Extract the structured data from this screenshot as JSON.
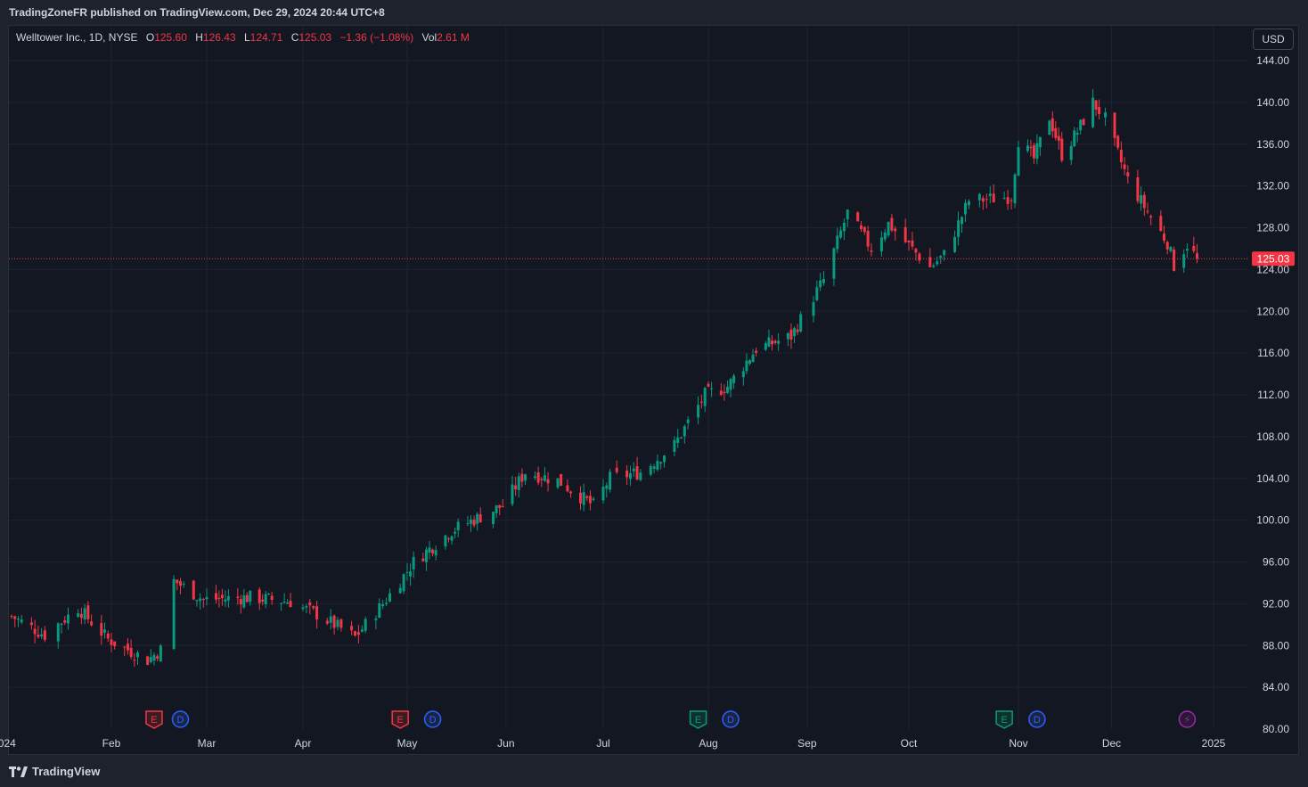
{
  "header": {
    "published": "TradingZoneFR published on TradingView.com, Dec 29, 2024 20:44 UTC+8"
  },
  "legend": {
    "symbol": "Welltower Inc., 1D, NYSE",
    "o_label": "O",
    "o_value": "125.60",
    "h_label": "H",
    "h_value": "126.43",
    "l_label": "L",
    "l_value": "124.71",
    "c_label": "C",
    "c_value": "125.03",
    "change": "−1.36 (−1.08%)",
    "vol_label": "Vol",
    "vol_value": "2.61 M"
  },
  "currency_button": "USD",
  "footer": {
    "brand": "TradingView"
  },
  "colors": {
    "up": "#089981",
    "down": "#f23645",
    "background": "#131722",
    "grid": "#1f2330",
    "text": "#d1d4dc",
    "earnings_down": "#f23645",
    "earnings_up": "#089981",
    "dividend": "#2962ff",
    "split": "#9c27b0"
  },
  "chart_data": {
    "type": "candlestick",
    "ylim": [
      80,
      145
    ],
    "y_ticks": [
      "144.00",
      "140.00",
      "136.00",
      "132.00",
      "128.00",
      "124.00",
      "120.00",
      "116.00",
      "112.00",
      "108.00",
      "104.00",
      "100.00",
      "96.00",
      "92.00",
      "88.00",
      "84.00",
      "80.00"
    ],
    "x_ticks": [
      {
        "label": "024",
        "date": "2024-01-01"
      },
      {
        "label": "Feb",
        "date": "2024-02-01"
      },
      {
        "label": "Mar",
        "date": "2024-03-01"
      },
      {
        "label": "Apr",
        "date": "2024-04-01"
      },
      {
        "label": "May",
        "date": "2024-05-01"
      },
      {
        "label": "Jun",
        "date": "2024-06-01"
      },
      {
        "label": "Jul",
        "date": "2024-07-01"
      },
      {
        "label": "Aug",
        "date": "2024-08-01"
      },
      {
        "label": "Sep",
        "date": "2024-09-01"
      },
      {
        "label": "Oct",
        "date": "2024-10-01"
      },
      {
        "label": "Nov",
        "date": "2024-11-01"
      },
      {
        "label": "Dec",
        "date": "2024-12-01"
      },
      {
        "label": "2025",
        "date": "2025-01-01"
      }
    ],
    "last_price": 125.03,
    "last_price_label": "125.03",
    "close_anchors": [
      [
        "2024-01-02",
        90.8
      ],
      [
        "2024-01-12",
        89.0
      ],
      [
        "2024-01-22",
        91.6
      ],
      [
        "2024-01-31",
        88.6
      ],
      [
        "2024-02-12",
        86.6
      ],
      [
        "2024-02-16",
        87.6
      ],
      [
        "2024-02-20",
        94.2
      ],
      [
        "2024-02-29",
        92.4
      ],
      [
        "2024-03-15",
        92.6
      ],
      [
        "2024-03-28",
        92.2
      ],
      [
        "2024-04-05",
        91.0
      ],
      [
        "2024-04-16",
        88.8
      ],
      [
        "2024-04-24",
        92.0
      ],
      [
        "2024-05-03",
        96.0
      ],
      [
        "2024-05-15",
        99.0
      ],
      [
        "2024-05-31",
        101.4
      ],
      [
        "2024-06-07",
        104.6
      ],
      [
        "2024-06-17",
        103.8
      ],
      [
        "2024-06-28",
        101.4
      ],
      [
        "2024-07-03",
        104.0
      ],
      [
        "2024-07-12",
        104.6
      ],
      [
        "2024-07-22",
        107.2
      ],
      [
        "2024-07-31",
        112.0
      ],
      [
        "2024-08-07",
        112.8
      ],
      [
        "2024-08-16",
        116.4
      ],
      [
        "2024-08-27",
        117.6
      ],
      [
        "2024-09-06",
        123.0
      ],
      [
        "2024-09-13",
        129.4
      ],
      [
        "2024-09-20",
        126.0
      ],
      [
        "2024-09-25",
        128.4
      ],
      [
        "2024-10-07",
        124.2
      ],
      [
        "2024-10-11",
        125.4
      ],
      [
        "2024-10-18",
        130.6
      ],
      [
        "2024-10-25",
        130.8
      ],
      [
        "2024-10-30",
        131.0
      ],
      [
        "2024-11-01",
        136.4
      ],
      [
        "2024-11-06",
        134.6
      ],
      [
        "2024-11-11",
        138.6
      ],
      [
        "2024-11-15",
        135.0
      ],
      [
        "2024-11-20",
        137.2
      ],
      [
        "2024-11-25",
        140.0
      ],
      [
        "2024-11-29",
        138.4
      ],
      [
        "2024-12-06",
        132.6
      ],
      [
        "2024-12-13",
        129.0
      ],
      [
        "2024-12-18",
        126.6
      ],
      [
        "2024-12-20",
        124.4
      ],
      [
        "2024-12-24",
        126.4
      ],
      [
        "2024-12-27",
        125.03
      ]
    ],
    "events": [
      {
        "type": "E",
        "date": "2024-02-14",
        "kind": "down"
      },
      {
        "type": "D",
        "date": "2024-02-22",
        "kind": "dividend"
      },
      {
        "type": "E",
        "date": "2024-04-29",
        "kind": "down"
      },
      {
        "type": "D",
        "date": "2024-05-09",
        "kind": "dividend"
      },
      {
        "type": "E",
        "date": "2024-07-29",
        "kind": "up"
      },
      {
        "type": "D",
        "date": "2024-08-08",
        "kind": "dividend"
      },
      {
        "type": "E",
        "date": "2024-10-28",
        "kind": "up"
      },
      {
        "type": "D",
        "date": "2024-11-07",
        "kind": "dividend"
      },
      {
        "type": "⚡",
        "date": "2024-12-24",
        "kind": "split"
      }
    ]
  }
}
